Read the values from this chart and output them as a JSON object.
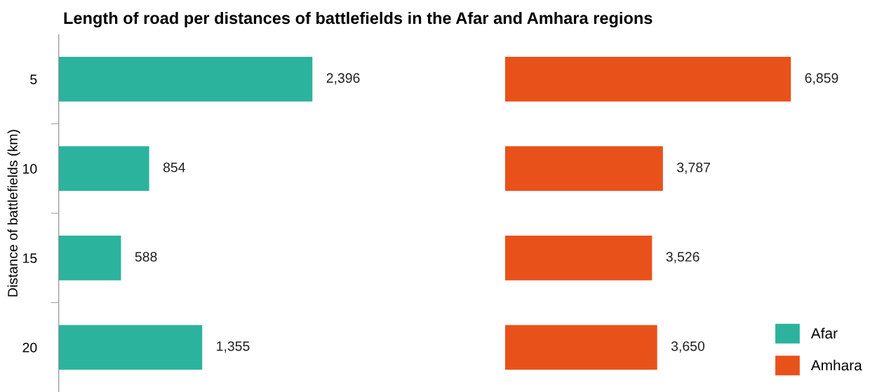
{
  "chart_data": [
    {
      "type": "bar",
      "orientation": "horizontal",
      "title": "Length of road per distances of battlefields in the Afar and Amhara regions",
      "ylabel": "Distance of battlefields (km)",
      "categories": [
        "5",
        "10",
        "15",
        "20"
      ],
      "tick_labels": "y",
      "legend": "bottom right",
      "series": [
        {
          "name": "Afar",
          "color": "#2bb39e",
          "values": [
            2396,
            854,
            588,
            1355
          ],
          "value_labels": [
            "2,396",
            "854",
            "588",
            "1,355"
          ]
        }
      ]
    },
    {
      "type": "bar",
      "orientation": "horizontal",
      "categories": [
        "5",
        "10",
        "15",
        "20"
      ],
      "tick_labels": false,
      "legend": "bottom right",
      "series": [
        {
          "name": "Amhara",
          "color": "#e9511b",
          "values": [
            6859,
            3787,
            3526,
            3650
          ],
          "value_labels": [
            "6,859",
            "3,787",
            "3,526",
            "3,650"
          ]
        }
      ]
    }
  ]
}
